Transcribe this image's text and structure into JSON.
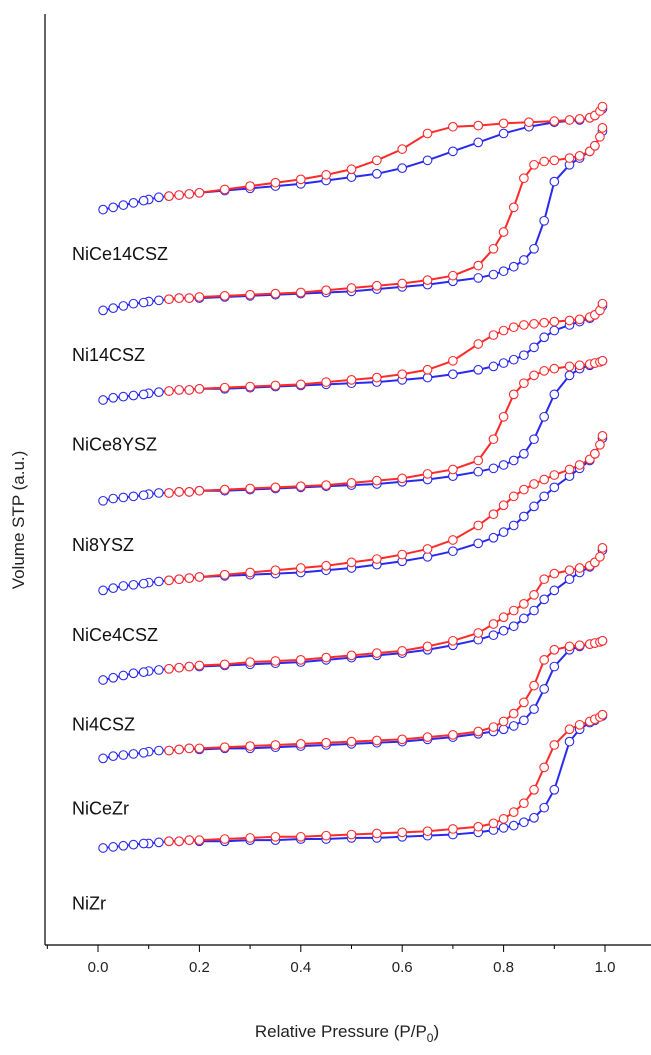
{
  "chart_data": {
    "type": "line",
    "xlabel": "Relative Pressure (P/P0)",
    "xlabel_main": "Relative Pressure (P/P",
    "xlabel_sub": "0",
    "xlabel_end": ")",
    "ylabel": "Volume STP (a.u.)",
    "xlim": [
      -0.1,
      1.05
    ],
    "x_ticks": [
      "0.0",
      "0.2",
      "0.4",
      "0.6",
      "0.8",
      "1.0"
    ],
    "grid": false,
    "y_ticks_visible": false,
    "adsorption_color": "#ff2a2a",
    "desorption_color": "#2a2aee",
    "samples": [
      {
        "name": "NiCe14CSZ",
        "offset": 6.7,
        "ads_x": [
          0.01,
          0.03,
          0.05,
          0.07,
          0.09,
          0.1,
          0.12,
          0.14,
          0.16,
          0.18,
          0.2,
          0.25,
          0.3,
          0.35,
          0.4,
          0.45,
          0.5,
          0.55,
          0.6,
          0.65,
          0.7,
          0.75,
          0.8,
          0.85,
          0.9,
          0.93,
          0.95,
          0.97,
          0.98,
          0.99,
          0.995
        ],
        "ads_y": [
          0.0,
          0.02,
          0.04,
          0.06,
          0.08,
          0.09,
          0.11,
          0.12,
          0.13,
          0.14,
          0.15,
          0.18,
          0.21,
          0.24,
          0.27,
          0.31,
          0.36,
          0.44,
          0.54,
          0.68,
          0.74,
          0.75,
          0.77,
          0.78,
          0.79,
          0.8,
          0.81,
          0.82,
          0.84,
          0.88,
          0.92
        ],
        "des_x": [
          0.995,
          0.98,
          0.97,
          0.95,
          0.9,
          0.85,
          0.8,
          0.75,
          0.7,
          0.65,
          0.6,
          0.55,
          0.5,
          0.45,
          0.4,
          0.35,
          0.3,
          0.25,
          0.2
        ],
        "des_y": [
          0.9,
          0.84,
          0.82,
          0.8,
          0.78,
          0.74,
          0.68,
          0.6,
          0.52,
          0.44,
          0.37,
          0.32,
          0.29,
          0.26,
          0.23,
          0.21,
          0.19,
          0.17,
          0.15
        ]
      },
      {
        "name": "Ni14CSZ",
        "offset": 5.8,
        "ads_x": [
          0.01,
          0.03,
          0.05,
          0.07,
          0.09,
          0.1,
          0.12,
          0.14,
          0.16,
          0.18,
          0.2,
          0.25,
          0.3,
          0.35,
          0.4,
          0.45,
          0.5,
          0.55,
          0.6,
          0.65,
          0.7,
          0.75,
          0.78,
          0.8,
          0.82,
          0.84,
          0.86,
          0.88,
          0.9,
          0.93,
          0.95,
          0.97,
          0.98,
          0.99,
          0.995
        ],
        "ads_y": [
          0.0,
          0.02,
          0.04,
          0.06,
          0.07,
          0.08,
          0.09,
          0.1,
          0.11,
          0.11,
          0.12,
          0.13,
          0.14,
          0.15,
          0.16,
          0.18,
          0.2,
          0.22,
          0.24,
          0.27,
          0.31,
          0.4,
          0.55,
          0.7,
          0.92,
          1.18,
          1.3,
          1.33,
          1.34,
          1.36,
          1.38,
          1.42,
          1.47,
          1.55,
          1.63
        ],
        "des_x": [
          0.995,
          0.98,
          0.97,
          0.95,
          0.93,
          0.9,
          0.88,
          0.86,
          0.84,
          0.82,
          0.8,
          0.78,
          0.75,
          0.7,
          0.65,
          0.6,
          0.55,
          0.5,
          0.45,
          0.4,
          0.35,
          0.3,
          0.25,
          0.2
        ],
        "des_y": [
          1.6,
          1.47,
          1.42,
          1.36,
          1.3,
          1.15,
          0.8,
          0.55,
          0.45,
          0.39,
          0.35,
          0.32,
          0.29,
          0.26,
          0.23,
          0.21,
          0.19,
          0.17,
          0.16,
          0.15,
          0.14,
          0.13,
          0.12,
          0.11
        ]
      },
      {
        "name": "NiCe8YSZ",
        "offset": 5.0,
        "ads_x": [
          0.01,
          0.03,
          0.05,
          0.07,
          0.09,
          0.1,
          0.12,
          0.14,
          0.16,
          0.18,
          0.2,
          0.25,
          0.3,
          0.35,
          0.4,
          0.45,
          0.5,
          0.55,
          0.6,
          0.65,
          0.7,
          0.75,
          0.78,
          0.8,
          0.82,
          0.84,
          0.86,
          0.88,
          0.9,
          0.93,
          0.95,
          0.97,
          0.98,
          0.99,
          0.995
        ],
        "ads_y": [
          0.0,
          0.02,
          0.03,
          0.04,
          0.05,
          0.06,
          0.07,
          0.08,
          0.09,
          0.09,
          0.1,
          0.11,
          0.12,
          0.13,
          0.14,
          0.16,
          0.18,
          0.2,
          0.23,
          0.27,
          0.35,
          0.5,
          0.58,
          0.62,
          0.65,
          0.67,
          0.68,
          0.69,
          0.7,
          0.71,
          0.72,
          0.74,
          0.76,
          0.8,
          0.86
        ],
        "des_x": [
          0.995,
          0.98,
          0.97,
          0.95,
          0.93,
          0.9,
          0.88,
          0.86,
          0.84,
          0.82,
          0.8,
          0.78,
          0.75,
          0.7,
          0.65,
          0.6,
          0.55,
          0.5,
          0.45,
          0.4,
          0.35,
          0.3,
          0.25,
          0.2
        ],
        "des_y": [
          0.84,
          0.76,
          0.73,
          0.7,
          0.67,
          0.62,
          0.56,
          0.47,
          0.4,
          0.36,
          0.33,
          0.3,
          0.27,
          0.23,
          0.2,
          0.18,
          0.16,
          0.15,
          0.14,
          0.13,
          0.12,
          0.11,
          0.1,
          0.1
        ]
      },
      {
        "name": "Ni8YSZ",
        "offset": 4.1,
        "ads_x": [
          0.01,
          0.03,
          0.05,
          0.07,
          0.09,
          0.1,
          0.12,
          0.14,
          0.16,
          0.18,
          0.2,
          0.25,
          0.3,
          0.35,
          0.4,
          0.45,
          0.5,
          0.55,
          0.6,
          0.65,
          0.7,
          0.75,
          0.78,
          0.8,
          0.82,
          0.84,
          0.86,
          0.88,
          0.9,
          0.93,
          0.95,
          0.97,
          0.98,
          0.99,
          0.995
        ],
        "ads_y": [
          0.0,
          0.02,
          0.03,
          0.04,
          0.05,
          0.06,
          0.07,
          0.07,
          0.08,
          0.08,
          0.09,
          0.1,
          0.11,
          0.12,
          0.13,
          0.14,
          0.16,
          0.18,
          0.2,
          0.24,
          0.28,
          0.36,
          0.55,
          0.75,
          0.95,
          1.05,
          1.12,
          1.16,
          1.18,
          1.2,
          1.21,
          1.22,
          1.23,
          1.24,
          1.25
        ],
        "des_x": [
          0.995,
          0.98,
          0.97,
          0.95,
          0.93,
          0.9,
          0.88,
          0.86,
          0.84,
          0.82,
          0.8,
          0.78,
          0.75,
          0.7,
          0.65,
          0.6,
          0.55,
          0.5,
          0.45,
          0.4,
          0.35,
          0.3,
          0.25,
          0.2
        ],
        "des_y": [
          1.25,
          1.23,
          1.21,
          1.18,
          1.12,
          0.95,
          0.75,
          0.55,
          0.42,
          0.36,
          0.32,
          0.29,
          0.26,
          0.22,
          0.19,
          0.17,
          0.15,
          0.14,
          0.13,
          0.12,
          0.11,
          0.1,
          0.09,
          0.09
        ]
      },
      {
        "name": "NiCe4CSZ",
        "offset": 3.3,
        "ads_x": [
          0.01,
          0.03,
          0.05,
          0.07,
          0.09,
          0.1,
          0.12,
          0.14,
          0.16,
          0.18,
          0.2,
          0.25,
          0.3,
          0.35,
          0.4,
          0.45,
          0.5,
          0.55,
          0.6,
          0.65,
          0.7,
          0.75,
          0.78,
          0.8,
          0.82,
          0.84,
          0.86,
          0.88,
          0.9,
          0.93,
          0.95,
          0.97,
          0.98,
          0.99,
          0.995
        ],
        "ads_y": [
          0.0,
          0.02,
          0.04,
          0.05,
          0.06,
          0.07,
          0.08,
          0.09,
          0.1,
          0.11,
          0.12,
          0.14,
          0.16,
          0.18,
          0.2,
          0.22,
          0.25,
          0.28,
          0.32,
          0.37,
          0.45,
          0.58,
          0.68,
          0.76,
          0.84,
          0.9,
          0.95,
          0.99,
          1.03,
          1.08,
          1.12,
          1.17,
          1.22,
          1.3,
          1.38
        ],
        "des_x": [
          0.995,
          0.98,
          0.97,
          0.95,
          0.93,
          0.9,
          0.88,
          0.86,
          0.84,
          0.82,
          0.8,
          0.78,
          0.75,
          0.7,
          0.65,
          0.6,
          0.55,
          0.5,
          0.45,
          0.4,
          0.35,
          0.3,
          0.25,
          0.2
        ],
        "des_y": [
          1.36,
          1.22,
          1.16,
          1.09,
          1.02,
          0.92,
          0.84,
          0.75,
          0.66,
          0.58,
          0.52,
          0.47,
          0.42,
          0.35,
          0.3,
          0.26,
          0.23,
          0.2,
          0.18,
          0.16,
          0.15,
          0.14,
          0.13,
          0.12
        ]
      },
      {
        "name": "Ni4CSZ",
        "offset": 2.5,
        "ads_x": [
          0.01,
          0.03,
          0.05,
          0.07,
          0.09,
          0.1,
          0.12,
          0.14,
          0.16,
          0.18,
          0.2,
          0.25,
          0.3,
          0.35,
          0.4,
          0.45,
          0.5,
          0.55,
          0.6,
          0.65,
          0.7,
          0.75,
          0.78,
          0.8,
          0.82,
          0.84,
          0.86,
          0.88,
          0.9,
          0.93,
          0.95,
          0.97,
          0.98,
          0.99,
          0.995
        ],
        "ads_y": [
          0.0,
          0.02,
          0.04,
          0.06,
          0.07,
          0.08,
          0.09,
          0.1,
          0.11,
          0.12,
          0.13,
          0.14,
          0.16,
          0.17,
          0.18,
          0.2,
          0.22,
          0.24,
          0.26,
          0.3,
          0.35,
          0.42,
          0.5,
          0.56,
          0.62,
          0.68,
          0.76,
          0.9,
          0.95,
          0.98,
          1.0,
          1.02,
          1.05,
          1.1,
          1.18
        ],
        "des_x": [
          0.995,
          0.98,
          0.97,
          0.95,
          0.93,
          0.9,
          0.88,
          0.86,
          0.84,
          0.82,
          0.8,
          0.78,
          0.75,
          0.7,
          0.65,
          0.6,
          0.55,
          0.5,
          0.45,
          0.4,
          0.35,
          0.3,
          0.25,
          0.2
        ],
        "des_y": [
          1.16,
          1.05,
          1.01,
          0.96,
          0.9,
          0.8,
          0.72,
          0.62,
          0.55,
          0.48,
          0.44,
          0.4,
          0.36,
          0.31,
          0.27,
          0.24,
          0.22,
          0.2,
          0.18,
          0.16,
          0.15,
          0.14,
          0.13,
          0.12
        ]
      },
      {
        "name": "NiCeZr",
        "offset": 1.8,
        "ads_x": [
          0.01,
          0.03,
          0.05,
          0.07,
          0.09,
          0.1,
          0.12,
          0.14,
          0.16,
          0.18,
          0.2,
          0.25,
          0.3,
          0.35,
          0.4,
          0.45,
          0.5,
          0.55,
          0.6,
          0.65,
          0.7,
          0.75,
          0.78,
          0.8,
          0.82,
          0.84,
          0.86,
          0.88,
          0.9,
          0.93,
          0.95,
          0.97,
          0.98,
          0.99,
          0.995
        ],
        "ads_y": [
          0.0,
          0.02,
          0.03,
          0.04,
          0.05,
          0.06,
          0.07,
          0.07,
          0.08,
          0.09,
          0.09,
          0.1,
          0.11,
          0.12,
          0.13,
          0.14,
          0.15,
          0.16,
          0.17,
          0.19,
          0.21,
          0.24,
          0.28,
          0.33,
          0.4,
          0.5,
          0.65,
          0.88,
          0.97,
          1.0,
          1.01,
          1.02,
          1.03,
          1.04,
          1.05
        ],
        "des_x": [
          0.995,
          0.98,
          0.97,
          0.95,
          0.93,
          0.9,
          0.88,
          0.86,
          0.84,
          0.82,
          0.8,
          0.78,
          0.75,
          0.7,
          0.65,
          0.6,
          0.55,
          0.5,
          0.45,
          0.4,
          0.35,
          0.3,
          0.25,
          0.2
        ],
        "des_y": [
          1.05,
          1.03,
          1.02,
          1.0,
          0.97,
          0.82,
          0.62,
          0.44,
          0.34,
          0.29,
          0.26,
          0.24,
          0.22,
          0.19,
          0.17,
          0.15,
          0.14,
          0.13,
          0.12,
          0.11,
          0.1,
          0.09,
          0.09,
          0.08
        ]
      },
      {
        "name": "NiZr",
        "offset": 1.0,
        "ads_x": [
          0.01,
          0.03,
          0.05,
          0.07,
          0.09,
          0.1,
          0.12,
          0.14,
          0.16,
          0.18,
          0.2,
          0.25,
          0.3,
          0.35,
          0.4,
          0.45,
          0.5,
          0.55,
          0.6,
          0.65,
          0.7,
          0.75,
          0.78,
          0.8,
          0.82,
          0.84,
          0.86,
          0.88,
          0.9,
          0.93,
          0.95,
          0.97,
          0.98,
          0.99,
          0.995
        ],
        "ads_y": [
          0.0,
          0.01,
          0.02,
          0.03,
          0.04,
          0.04,
          0.05,
          0.06,
          0.06,
          0.07,
          0.07,
          0.08,
          0.09,
          0.1,
          0.1,
          0.11,
          0.12,
          0.13,
          0.14,
          0.15,
          0.17,
          0.19,
          0.22,
          0.26,
          0.32,
          0.4,
          0.52,
          0.72,
          0.92,
          1.06,
          1.1,
          1.13,
          1.15,
          1.17,
          1.19
        ],
        "des_x": [
          0.995,
          0.98,
          0.97,
          0.95,
          0.93,
          0.9,
          0.88,
          0.86,
          0.84,
          0.82,
          0.8,
          0.78,
          0.75,
          0.7,
          0.65,
          0.6,
          0.55,
          0.5,
          0.45,
          0.4,
          0.35,
          0.3,
          0.25,
          0.2
        ],
        "des_y": [
          1.18,
          1.14,
          1.12,
          1.06,
          0.95,
          0.52,
          0.36,
          0.27,
          0.23,
          0.2,
          0.18,
          0.16,
          0.14,
          0.12,
          0.11,
          0.1,
          0.09,
          0.09,
          0.08,
          0.08,
          0.07,
          0.07,
          0.06,
          0.06
        ]
      }
    ],
    "label_offsets": [
      6.25,
      5.35,
      4.55,
      3.65,
      2.85,
      2.05,
      1.3,
      0.45
    ]
  }
}
